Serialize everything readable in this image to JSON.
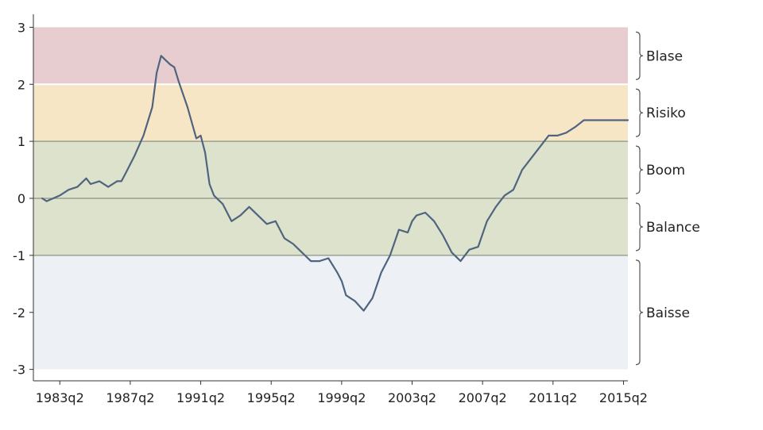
{
  "chart_data": {
    "type": "line",
    "title": "",
    "xlabel": "",
    "ylabel": "",
    "ylim": [
      -3.2,
      3.2
    ],
    "xlim": [
      "1981q4",
      "2015q3"
    ],
    "grid": false,
    "y_ticks": [
      "3",
      "2",
      "1",
      "0",
      "-1",
      "-2",
      "-3"
    ],
    "x_ticks": [
      "1983q2",
      "1987q2",
      "1991q2",
      "1995q2",
      "1999q2",
      "2003q2",
      "2007q2",
      "2011q2",
      "2015q2"
    ],
    "zones": [
      {
        "label": "Blase",
        "from": 2,
        "to": 3,
        "color": "#e8cdd0"
      },
      {
        "label": "Risiko",
        "from": 1,
        "to": 2,
        "color": "#f7e6c6"
      },
      {
        "label": "Boom",
        "from": 0,
        "to": 1,
        "color": "#dde2cc"
      },
      {
        "label": "Balance",
        "from": -1,
        "to": 0,
        "color": "#dde2cc"
      },
      {
        "label": "Baisse",
        "from": -3,
        "to": -1,
        "color": "#edf0f4"
      }
    ],
    "line_color": "#50647f",
    "series": [
      {
        "x": [
          "1982q2",
          "1982q3",
          "1983q2",
          "1983q4",
          "1984q2",
          "1984q4",
          "1985q1",
          "1985q3",
          "1986q1",
          "1986q3",
          "1986q4",
          "1987q1",
          "1987q3",
          "1988q1",
          "1988q3",
          "1988q4",
          "1989q1",
          "1989q3",
          "1989q4",
          "1990q1",
          "1990q3",
          "1991q1",
          "1991q2",
          "1991q3",
          "1991q4",
          "1992q1",
          "1992q3",
          "1993q1",
          "1993q3",
          "1994q1",
          "1994q3",
          "1995q1",
          "1995q3",
          "1996q1",
          "1996q3",
          "1997q1",
          "1997q3",
          "1998q1",
          "1998q3",
          "1999q1",
          "1999q2",
          "1999q3",
          "2000q1",
          "2000q3",
          "2001q1",
          "2001q3",
          "2002q1",
          "2002q3",
          "2003q1",
          "2003q2",
          "2003q3",
          "2004q1",
          "2004q3",
          "2005q1",
          "2005q3",
          "2006q1",
          "2006q3",
          "2007q1",
          "2007q3",
          "2008q1",
          "2008q2",
          "2008q3",
          "2009q1",
          "2009q3",
          "2010q1",
          "2010q3",
          "2011q1",
          "2011q3",
          "2012q1",
          "2012q3",
          "2013q1",
          "2013q3",
          "2014q1",
          "2014q3",
          "2015q1",
          "2015q3"
        ],
        "values": [
          0.0,
          -0.05,
          0.05,
          0.15,
          0.2,
          0.35,
          0.25,
          0.3,
          0.2,
          0.3,
          0.3,
          0.45,
          0.75,
          1.1,
          1.6,
          2.2,
          2.5,
          2.35,
          2.3,
          2.05,
          1.6,
          1.05,
          1.1,
          0.8,
          0.25,
          0.05,
          -0.1,
          -0.4,
          -0.3,
          -0.15,
          -0.3,
          -0.45,
          -0.4,
          -0.7,
          -0.8,
          -0.95,
          -1.1,
          -1.1,
          -1.05,
          -1.3,
          -1.45,
          -1.7,
          -1.8,
          -1.97,
          -1.75,
          -1.3,
          -1.0,
          -0.55,
          -0.6,
          -0.4,
          -0.3,
          -0.25,
          -0.4,
          -0.65,
          -0.95,
          -1.1,
          -0.9,
          -0.85,
          -0.4,
          -0.15,
          -0.05,
          0.05,
          0.15,
          0.5,
          0.7,
          0.9,
          1.1,
          1.1,
          1.15,
          1.25,
          1.37,
          1.37,
          1.37,
          1.37,
          1.37,
          1.37
        ]
      }
    ]
  }
}
